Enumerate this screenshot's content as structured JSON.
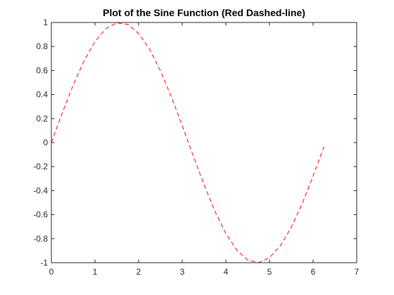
{
  "chart_data": {
    "type": "line",
    "title": "Plot of the Sine Function (Red Dashed-line)",
    "xlabel": "",
    "ylabel": "",
    "xlim": [
      0,
      7
    ],
    "ylim": [
      -1,
      1
    ],
    "x_ticks": [
      0,
      1,
      2,
      3,
      4,
      5,
      6,
      7
    ],
    "x_tick_labels": [
      "0",
      "1",
      "2",
      "3",
      "4",
      "5",
      "6",
      "7"
    ],
    "y_ticks": [
      -1,
      -0.8,
      -0.6,
      -0.4,
      -0.2,
      0,
      0.2,
      0.4,
      0.6,
      0.8,
      1
    ],
    "y_tick_labels": [
      "-1",
      "-0.8",
      "-0.6",
      "-0.4",
      "-0.2",
      "0",
      "0.2",
      "0.4",
      "0.6",
      "0.8",
      "1"
    ],
    "grid": false,
    "legend": "none",
    "series": [
      {
        "color": "#ff0000",
        "line_style": "dashed",
        "x": [
          0,
          0.25,
          0.5,
          0.75,
          1,
          1.25,
          1.5,
          1.75,
          2,
          2.25,
          2.5,
          2.75,
          3,
          3.25,
          3.5,
          3.75,
          4,
          4.25,
          4.5,
          4.75,
          5,
          5.25,
          5.5,
          5.75,
          6,
          6.25
        ],
        "y": [
          0,
          0.247,
          0.479,
          0.682,
          0.841,
          0.949,
          0.997,
          0.984,
          0.909,
          0.778,
          0.598,
          0.382,
          0.141,
          -0.108,
          -0.351,
          -0.572,
          -0.757,
          -0.895,
          -0.978,
          -0.999,
          -0.959,
          -0.859,
          -0.706,
          -0.508,
          -0.279,
          -0.033
        ]
      }
    ]
  }
}
